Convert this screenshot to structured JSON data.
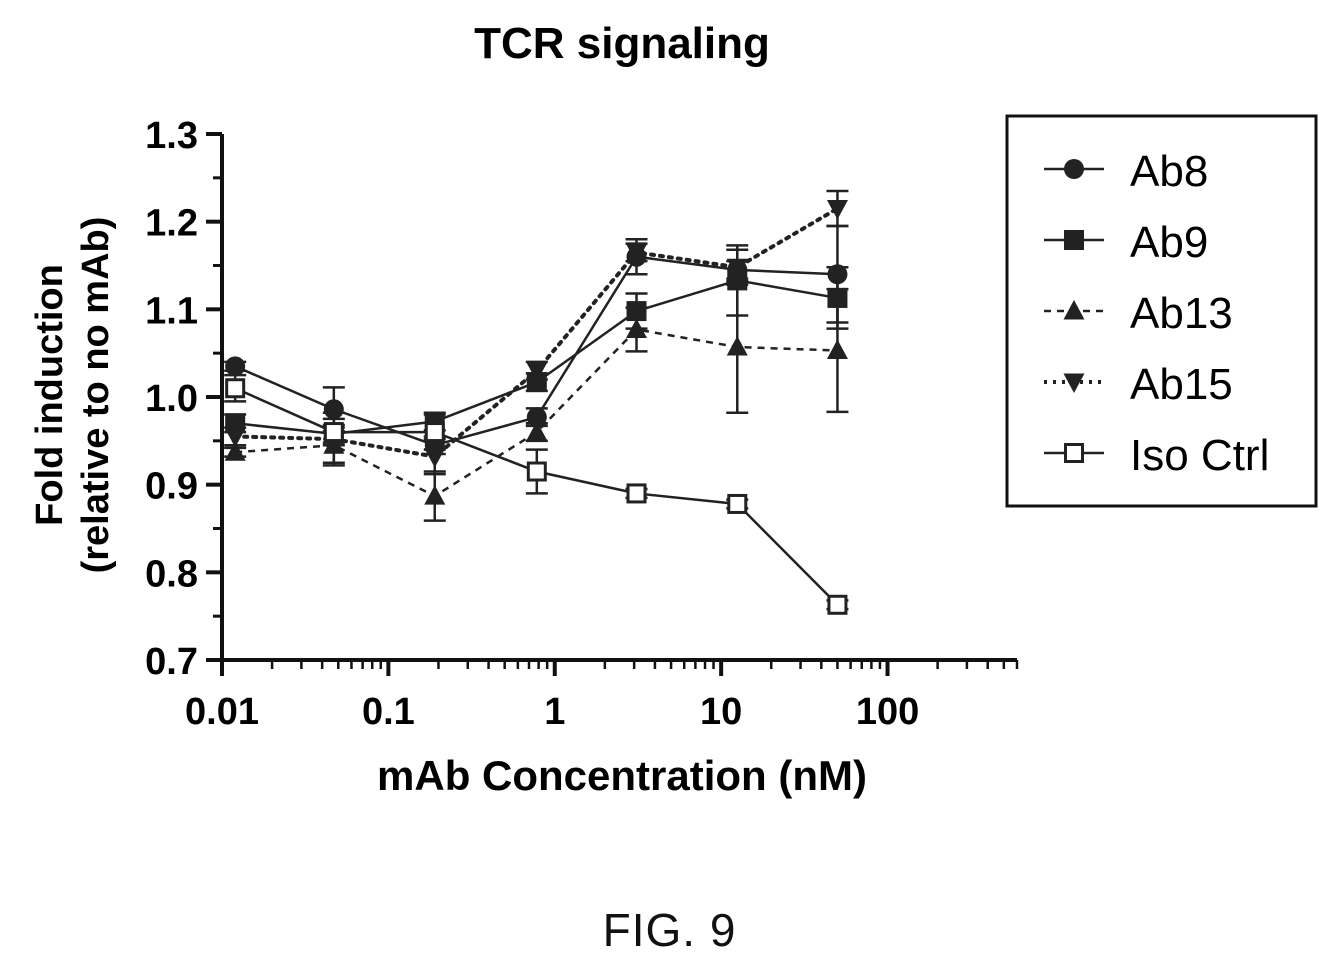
{
  "figure_label": "FIG. 9",
  "chart_data": {
    "type": "line",
    "title": "TCR signaling",
    "xlabel": "mAb Concentration (nM)",
    "ylabel": [
      "Fold induction",
      "(relative to no mAb)"
    ],
    "xscale": "log",
    "xlim": [
      0.01,
      600
    ],
    "ylim": [
      0.7,
      1.3
    ],
    "xticks": [
      {
        "value": 0.01,
        "label": "0.01"
      },
      {
        "value": 0.1,
        "label": "0.1"
      },
      {
        "value": 1,
        "label": "1"
      },
      {
        "value": 10,
        "label": "10"
      },
      {
        "value": 100,
        "label": "100"
      }
    ],
    "yticks": [
      {
        "value": 0.7,
        "label": "0.7"
      },
      {
        "value": 0.8,
        "label": "0.8"
      },
      {
        "value": 0.9,
        "label": "0.9"
      },
      {
        "value": 1.0,
        "label": "1.0"
      },
      {
        "value": 1.1,
        "label": "1.1"
      },
      {
        "value": 1.2,
        "label": "1.2"
      },
      {
        "value": 1.3,
        "label": "1.3"
      }
    ],
    "grid": false,
    "legend_position": "right",
    "x": [
      0.012,
      0.047,
      0.19,
      0.78,
      3.1,
      12.5,
      50
    ],
    "series": [
      {
        "name": "Ab8",
        "marker": "circle",
        "line": "solid",
        "values": [
          1.035,
          0.986,
          0.945,
          0.977,
          1.16,
          1.145,
          1.14
        ],
        "errors": [
          0.005,
          0.025,
          0.01,
          0.01,
          0.02,
          0.01,
          0.055
        ]
      },
      {
        "name": "Ab9",
        "marker": "square",
        "line": "solid",
        "values": [
          0.97,
          0.958,
          0.972,
          1.017,
          1.098,
          1.133,
          1.113
        ],
        "errors": [
          0.01,
          0.01,
          0.01,
          0.01,
          0.02,
          0.04,
          0.035
        ]
      },
      {
        "name": "Ab13",
        "marker": "triangle-up",
        "line": "dashed",
        "values": [
          0.937,
          0.945,
          0.887,
          0.96,
          1.077,
          1.057,
          1.053
        ],
        "errors": [
          0.005,
          0.02,
          0.028,
          0.01,
          0.025,
          0.075,
          0.07
        ]
      },
      {
        "name": "Ab15",
        "marker": "triangle-down",
        "line": "dotted",
        "values": [
          0.955,
          0.952,
          0.932,
          1.03,
          1.165,
          1.148,
          1.215
        ],
        "errors": [
          0.01,
          0.03,
          0.02,
          0.01,
          0.01,
          0.02,
          0.02
        ]
      },
      {
        "name": "Iso Ctrl",
        "marker": "open-square",
        "line": "solid",
        "values": [
          1.01,
          0.96,
          0.96,
          0.915,
          0.89,
          0.878,
          0.763
        ],
        "errors": [
          0.015,
          0.015,
          0.02,
          0.025,
          0.005,
          0.005,
          0.005
        ]
      }
    ]
  }
}
